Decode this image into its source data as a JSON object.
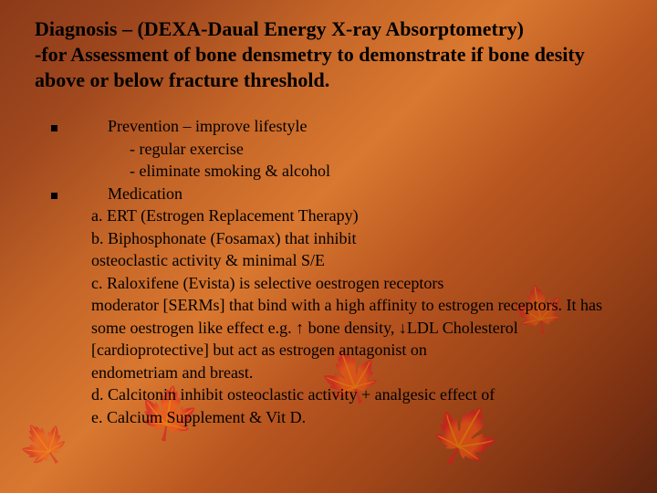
{
  "title_line1": "Diagnosis – (DEXA-Daual Energy X-ray Absorptometry)",
  "title_line2": "-for Assessment of bone densmetry to demonstrate if bone desity above or below fracture threshold.",
  "lines": {
    "prevention": "Prevention – improve lifestyle",
    "reg_ex": "- regular exercise",
    "elim": "- eliminate smoking & alcohol",
    "medication": "Medication",
    "a": "a.  ERT (Estrogen Replacement Therapy)",
    "b1": "b.  Biphosphonate (Fosamax) that inhibit",
    "b2": "     osteoclastic activity & minimal S/E",
    "c1": "c.  Raloxifene (Evista) is selective oestrogen receptors",
    "c2": "     moderator [SERMs] that bind with a high affinity to estrogen receptors. It has some   oestrogen like effect e.g. ↑ bone density, ↓LDL Cholesterol [cardioprotective] but act as estrogen antagonist on",
    "c3": "     endometriam and breast.",
    "d": "d.  Calcitonin inhibit osteoclastic activity + analgesic effect of",
    "e": "e.  Calcium Supplement & Vit D."
  },
  "colors": {
    "text": "#000000"
  }
}
